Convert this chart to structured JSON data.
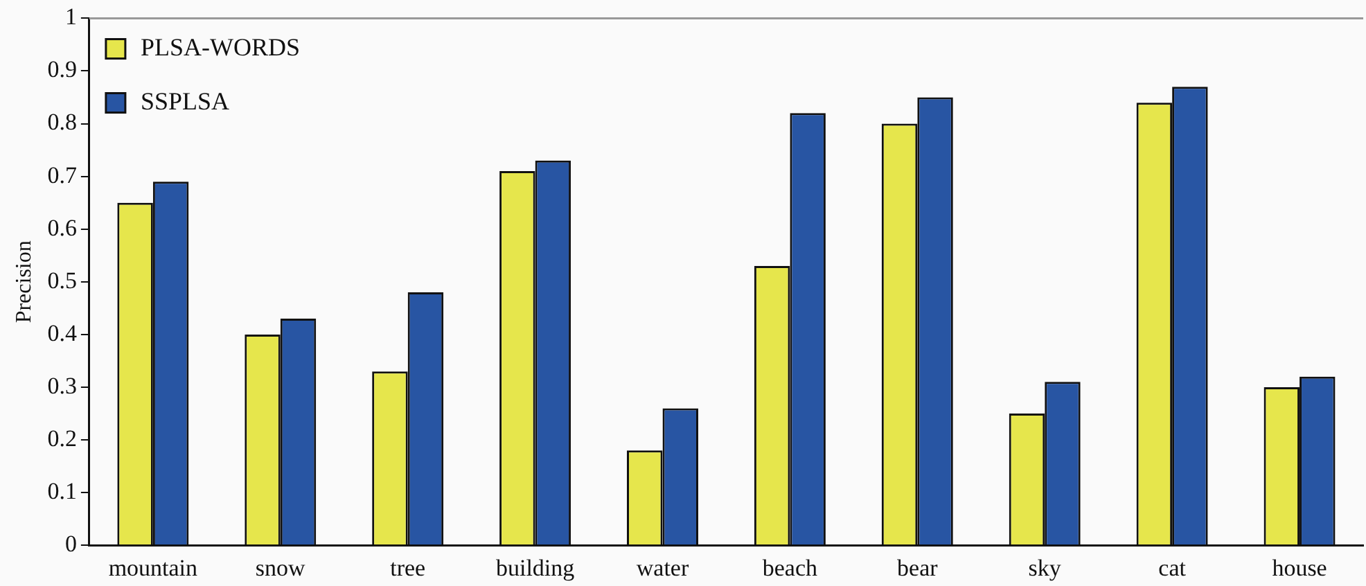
{
  "chart_data": {
    "type": "bar",
    "ylabel": "Precision",
    "categories": [
      "mountain",
      "snow",
      "tree",
      "building",
      "water",
      "beach",
      "bear",
      "sky",
      "cat",
      "house"
    ],
    "series": [
      {
        "name": "PLSA-WORDS",
        "color": "#e6e64c",
        "values": [
          0.65,
          0.4,
          0.33,
          0.71,
          0.18,
          0.53,
          0.8,
          0.25,
          0.84,
          0.3
        ]
      },
      {
        "name": "SSPLSA",
        "color": "#2855a3",
        "values": [
          0.69,
          0.43,
          0.48,
          0.73,
          0.26,
          0.82,
          0.85,
          0.31,
          0.87,
          0.32
        ]
      }
    ],
    "ylim": [
      0,
      1
    ],
    "yticks": [
      0,
      0.1,
      0.2,
      0.3,
      0.4,
      0.5,
      0.6,
      0.7,
      0.8,
      0.9,
      1
    ],
    "grid": false,
    "legend": "top left"
  }
}
